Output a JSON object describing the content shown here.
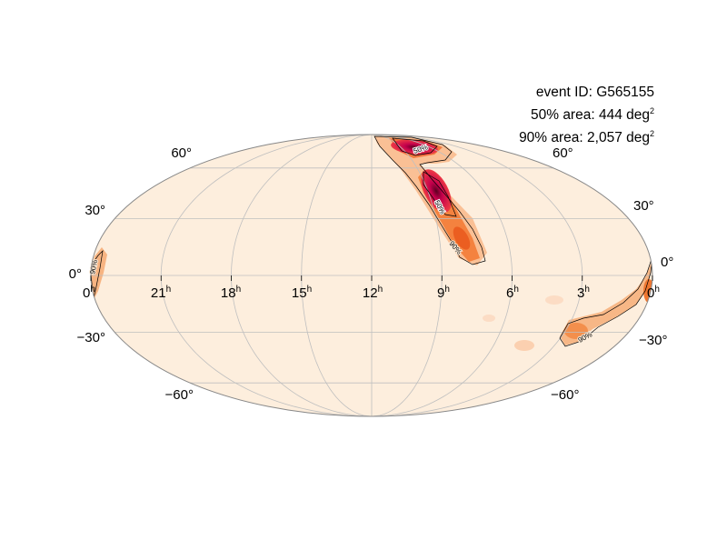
{
  "event": {
    "id_line": "event ID: G565155",
    "area50_line": "50% area: 444 deg",
    "area90_line": "90% area: 2,057 deg",
    "unit_superscript": "2"
  },
  "map": {
    "projection": "mollweide",
    "colormap": "cylon",
    "graticule_color": "#bfbfbf",
    "outline_color": "#888888",
    "background_color": "#fdeedd",
    "dec_labels": [
      "60°",
      "30°",
      "0°",
      "−30°",
      "−60°"
    ],
    "ra_labels": [
      {
        "hours": "21",
        "suffix": "h"
      },
      {
        "hours": "18",
        "suffix": "h"
      },
      {
        "hours": "15",
        "suffix": "h"
      },
      {
        "hours": "12",
        "suffix": "h"
      },
      {
        "hours": "9",
        "suffix": "h"
      },
      {
        "hours": "6",
        "suffix": "h"
      },
      {
        "hours": "3",
        "suffix": "h"
      },
      {
        "hours": "0",
        "suffix": "h"
      }
    ],
    "contour_labels": {
      "c50": "50%",
      "c90": "90%"
    }
  }
}
